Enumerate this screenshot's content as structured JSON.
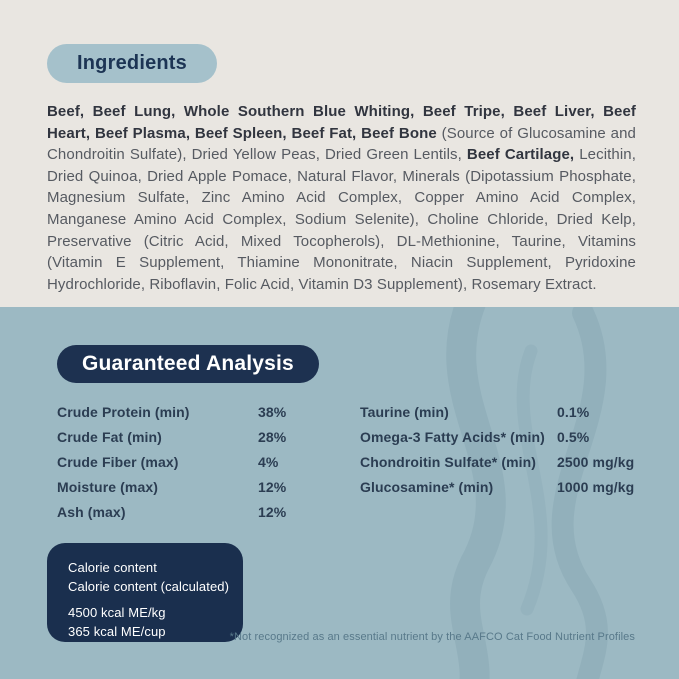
{
  "colors": {
    "top_background": "#e9e6e1",
    "bottom_background": "#9cb9c3",
    "light_pill": "#a5c1cb",
    "navy": "#1d3150",
    "body_text": "#565a61",
    "body_text_bold": "#31353f",
    "analysis_text": "#2b3d52",
    "footnote_text": "#58798a"
  },
  "ingredients": {
    "heading": "Ingredients",
    "segments": [
      {
        "bold": true,
        "text": "Beef, Beef Lung, Whole Southern Blue Whiting, Beef Tripe, Beef Liver, Beef Heart, Beef Plasma, Beef Spleen, Beef Fat, Beef Bone "
      },
      {
        "bold": false,
        "text": "(Source of Glucosamine and Chondroitin Sulfate), Dried Yellow Peas, Dried Green Lentils, "
      },
      {
        "bold": true,
        "text": "Beef Cartilage,"
      },
      {
        "bold": false,
        "text": " Lecithin, Dried Quinoa, Dried Apple Pomace, Natural Flavor, Minerals (Dipotassium Phosphate, Magnesium Sulfate, Zinc Amino Acid Complex, Copper Amino Acid Complex, Manganese Amino Acid Complex, Sodium Selenite), Choline Chloride, Dried Kelp, Preservative (Citric Acid, Mixed Tocopherols), DL-Methionine, Taurine, Vitamins (Vitamin E Supplement, Thiamine Mononitrate, Niacin Supplement, Pyridoxine Hydrochloride, Riboflavin, Folic Acid, Vitamin D3 Supplement), Rosemary Extract."
      }
    ]
  },
  "guaranteed_analysis": {
    "heading": "Guaranteed Analysis",
    "left_rows": [
      {
        "label": "Crude Protein (min)",
        "value": "38%"
      },
      {
        "label": "Crude Fat (min)",
        "value": "28%"
      },
      {
        "label": "Crude Fiber (max)",
        "value": "4%"
      },
      {
        "label": "Moisture (max)",
        "value": "12%"
      },
      {
        "label": "Ash (max)",
        "value": "12%"
      }
    ],
    "right_rows": [
      {
        "label": "Taurine (min)",
        "value": "0.1%"
      },
      {
        "label": "Omega-3 Fatty Acids* (min)",
        "value": "0.5%"
      },
      {
        "label": "Chondroitin Sulfate* (min)",
        "value": "2500 mg/kg"
      },
      {
        "label": "Glucosamine* (min)",
        "value": "1000 mg/kg"
      }
    ]
  },
  "calorie_box": {
    "title_lines": [
      "Calorie content",
      "Calorie content (calculated)"
    ],
    "value_lines": [
      "4500 kcal ME/kg",
      "365 kcal ME/cup"
    ]
  },
  "footnote": "*Not recognized as an essential nutrient by the AAFCO Cat Food Nutrient Profiles"
}
